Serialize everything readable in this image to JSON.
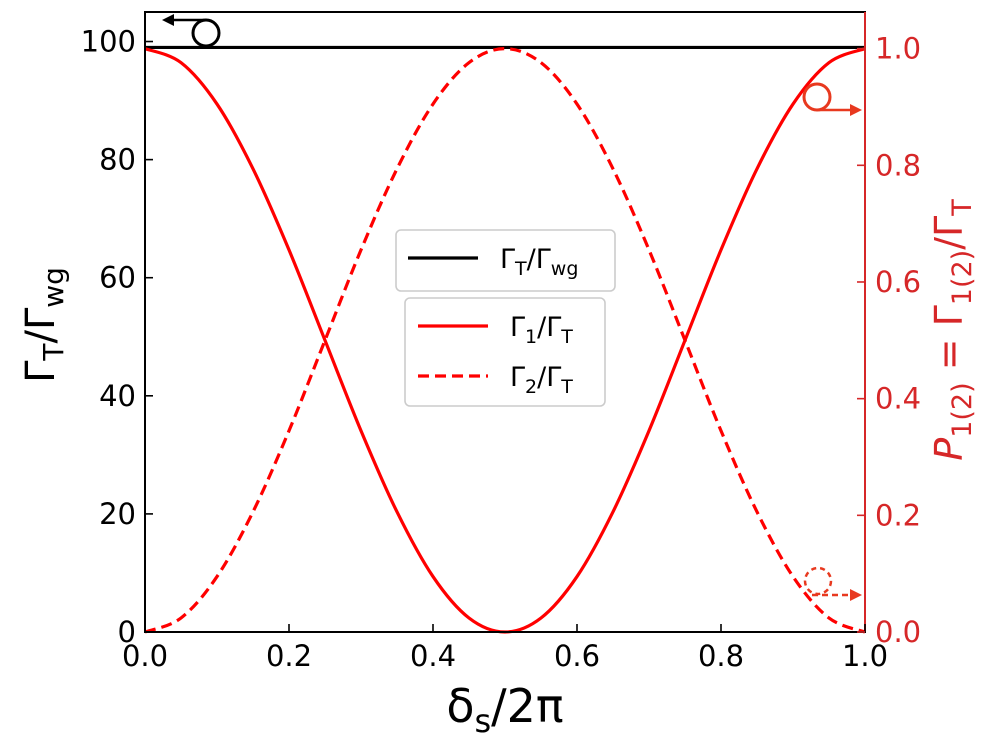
{
  "chart_data": {
    "type": "line",
    "xlabel": "δs/2π",
    "xlim": [
      0.0,
      1.0
    ],
    "xticks": [
      0.0,
      0.2,
      0.4,
      0.6,
      0.8,
      1.0
    ],
    "xtick_labels": [
      "0.0",
      "0.2",
      "0.4",
      "0.6",
      "0.8",
      "1.0"
    ],
    "left_axis": {
      "ylabel": "ΓT/Γwg",
      "ylim": [
        0,
        105
      ],
      "ticks": [
        0,
        20,
        40,
        60,
        80,
        100
      ],
      "tick_labels": [
        "0",
        "20",
        "40",
        "60",
        "80",
        "100"
      ],
      "color": "#000000"
    },
    "right_axis": {
      "ylabel": "P1(2) = Γ1(2)/ΓT",
      "ylim": [
        0,
        1.0628
      ],
      "ticks": [
        0.0,
        0.2,
        0.4,
        0.6,
        0.8,
        1.0
      ],
      "tick_labels": [
        "0.0",
        "0.2",
        "0.4",
        "0.6",
        "0.8",
        "1.0"
      ],
      "color": "#d62728"
    },
    "series": [
      {
        "name": "ΓT/Γwg",
        "axis": "left",
        "style": "solid",
        "color": "#000000",
        "x": [
          0.0,
          1.0
        ],
        "y": [
          99,
          99
        ]
      },
      {
        "name": "Γ1/ΓT",
        "axis": "right",
        "style": "solid",
        "color": "#ff0000",
        "x": [
          0.0,
          0.05,
          0.1,
          0.15,
          0.2,
          0.25,
          0.3,
          0.35,
          0.4,
          0.45,
          0.5,
          0.55,
          0.6,
          0.65,
          0.7,
          0.75,
          0.8,
          0.85,
          0.9,
          0.95,
          1.0
        ],
        "y": [
          1.0,
          0.976,
          0.905,
          0.794,
          0.655,
          0.5,
          0.345,
          0.206,
          0.095,
          0.024,
          0.0,
          0.024,
          0.095,
          0.206,
          0.345,
          0.5,
          0.655,
          0.794,
          0.905,
          0.976,
          1.0
        ]
      },
      {
        "name": "Γ2/ΓT",
        "axis": "right",
        "style": "dashed",
        "color": "#ff0000",
        "x": [
          0.0,
          0.05,
          0.1,
          0.15,
          0.2,
          0.25,
          0.3,
          0.35,
          0.4,
          0.45,
          0.5,
          0.55,
          0.6,
          0.65,
          0.7,
          0.75,
          0.8,
          0.85,
          0.9,
          0.95,
          1.0
        ],
        "y": [
          0.0,
          0.024,
          0.095,
          0.206,
          0.345,
          0.5,
          0.655,
          0.794,
          0.905,
          0.976,
          1.0,
          0.976,
          0.905,
          0.794,
          0.655,
          0.5,
          0.345,
          0.206,
          0.095,
          0.024,
          0.0
        ]
      }
    ],
    "legend_top": {
      "placement": "center",
      "entries": [
        {
          "main": "Γ",
          "sub": "T",
          "mid": "/Γ",
          "sub2": "wg"
        }
      ]
    },
    "legend_bottom": {
      "placement": "center",
      "entries": [
        {
          "main": "Γ",
          "sub": "1",
          "mid": "/Γ",
          "sub2": "T"
        },
        {
          "main": "Γ",
          "sub": "2",
          "mid": "/Γ",
          "sub2": "T"
        }
      ]
    },
    "annotations": [
      {
        "kind": "circle-arrow",
        "points_to": "left-axis",
        "near_series": "ΓT/Γwg"
      },
      {
        "kind": "circle-arrow",
        "points_to": "right-axis",
        "near_series": "Γ1/ΓT"
      },
      {
        "kind": "dashed-circle-arrow",
        "points_to": "right-axis",
        "near_series": "Γ2/ΓT"
      }
    ]
  }
}
